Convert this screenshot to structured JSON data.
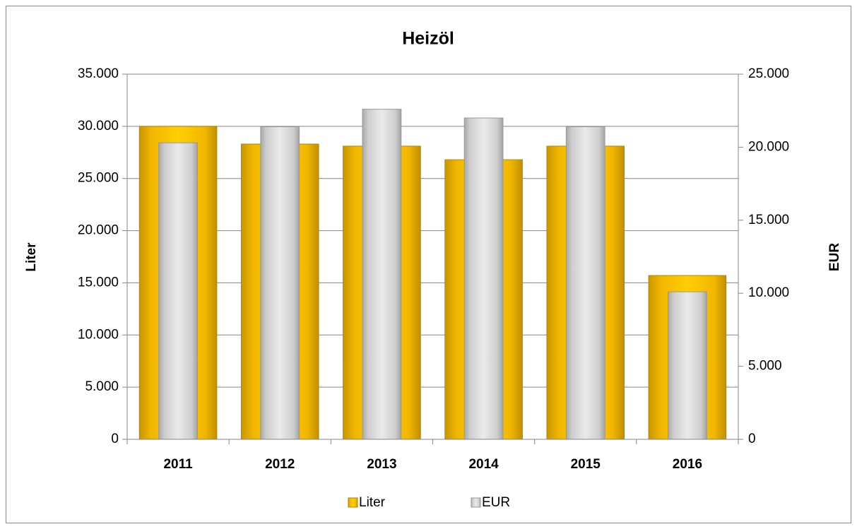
{
  "chart_data": {
    "type": "bar",
    "title": "Heizöl",
    "y_label": "Liter",
    "y2_label": "EUR",
    "categories": [
      "2011",
      "2012",
      "2013",
      "2014",
      "2015",
      "2016"
    ],
    "series": [
      {
        "name": "Liter",
        "color": "#ffc000",
        "values": [
          30000,
          28300,
          28100,
          26800,
          28100,
          15700
        ]
      },
      {
        "name": "EUR",
        "color": "#d9d9d9",
        "axis": "y2",
        "values": [
          20300,
          21400,
          22600,
          22000,
          21400,
          10100
        ]
      }
    ],
    "ylim": [
      0,
      35000
    ],
    "yticks": [
      0,
      {
        "value": 5000,
        "label": "5.000"
      },
      {
        "value": 10000,
        "label": "10.000"
      },
      {
        "value": 15000,
        "label": "15.000"
      },
      {
        "value": 20000,
        "label": "20.000"
      },
      {
        "value": 25000,
        "label": "25.000"
      },
      {
        "value": 30000,
        "label": "30.000"
      },
      {
        "value": 35000,
        "label": "35.000"
      }
    ],
    "y2lim": [
      0,
      25000
    ],
    "y2ticks": [
      0,
      {
        "value": 5000,
        "label": "5.000"
      },
      {
        "value": 10000,
        "label": "10.000"
      },
      {
        "value": 15000,
        "label": "15.000"
      },
      {
        "value": 20000,
        "label": "20.000"
      },
      {
        "value": 25000,
        "label": "25.000"
      }
    ],
    "grid": true,
    "legend": "bottom"
  }
}
